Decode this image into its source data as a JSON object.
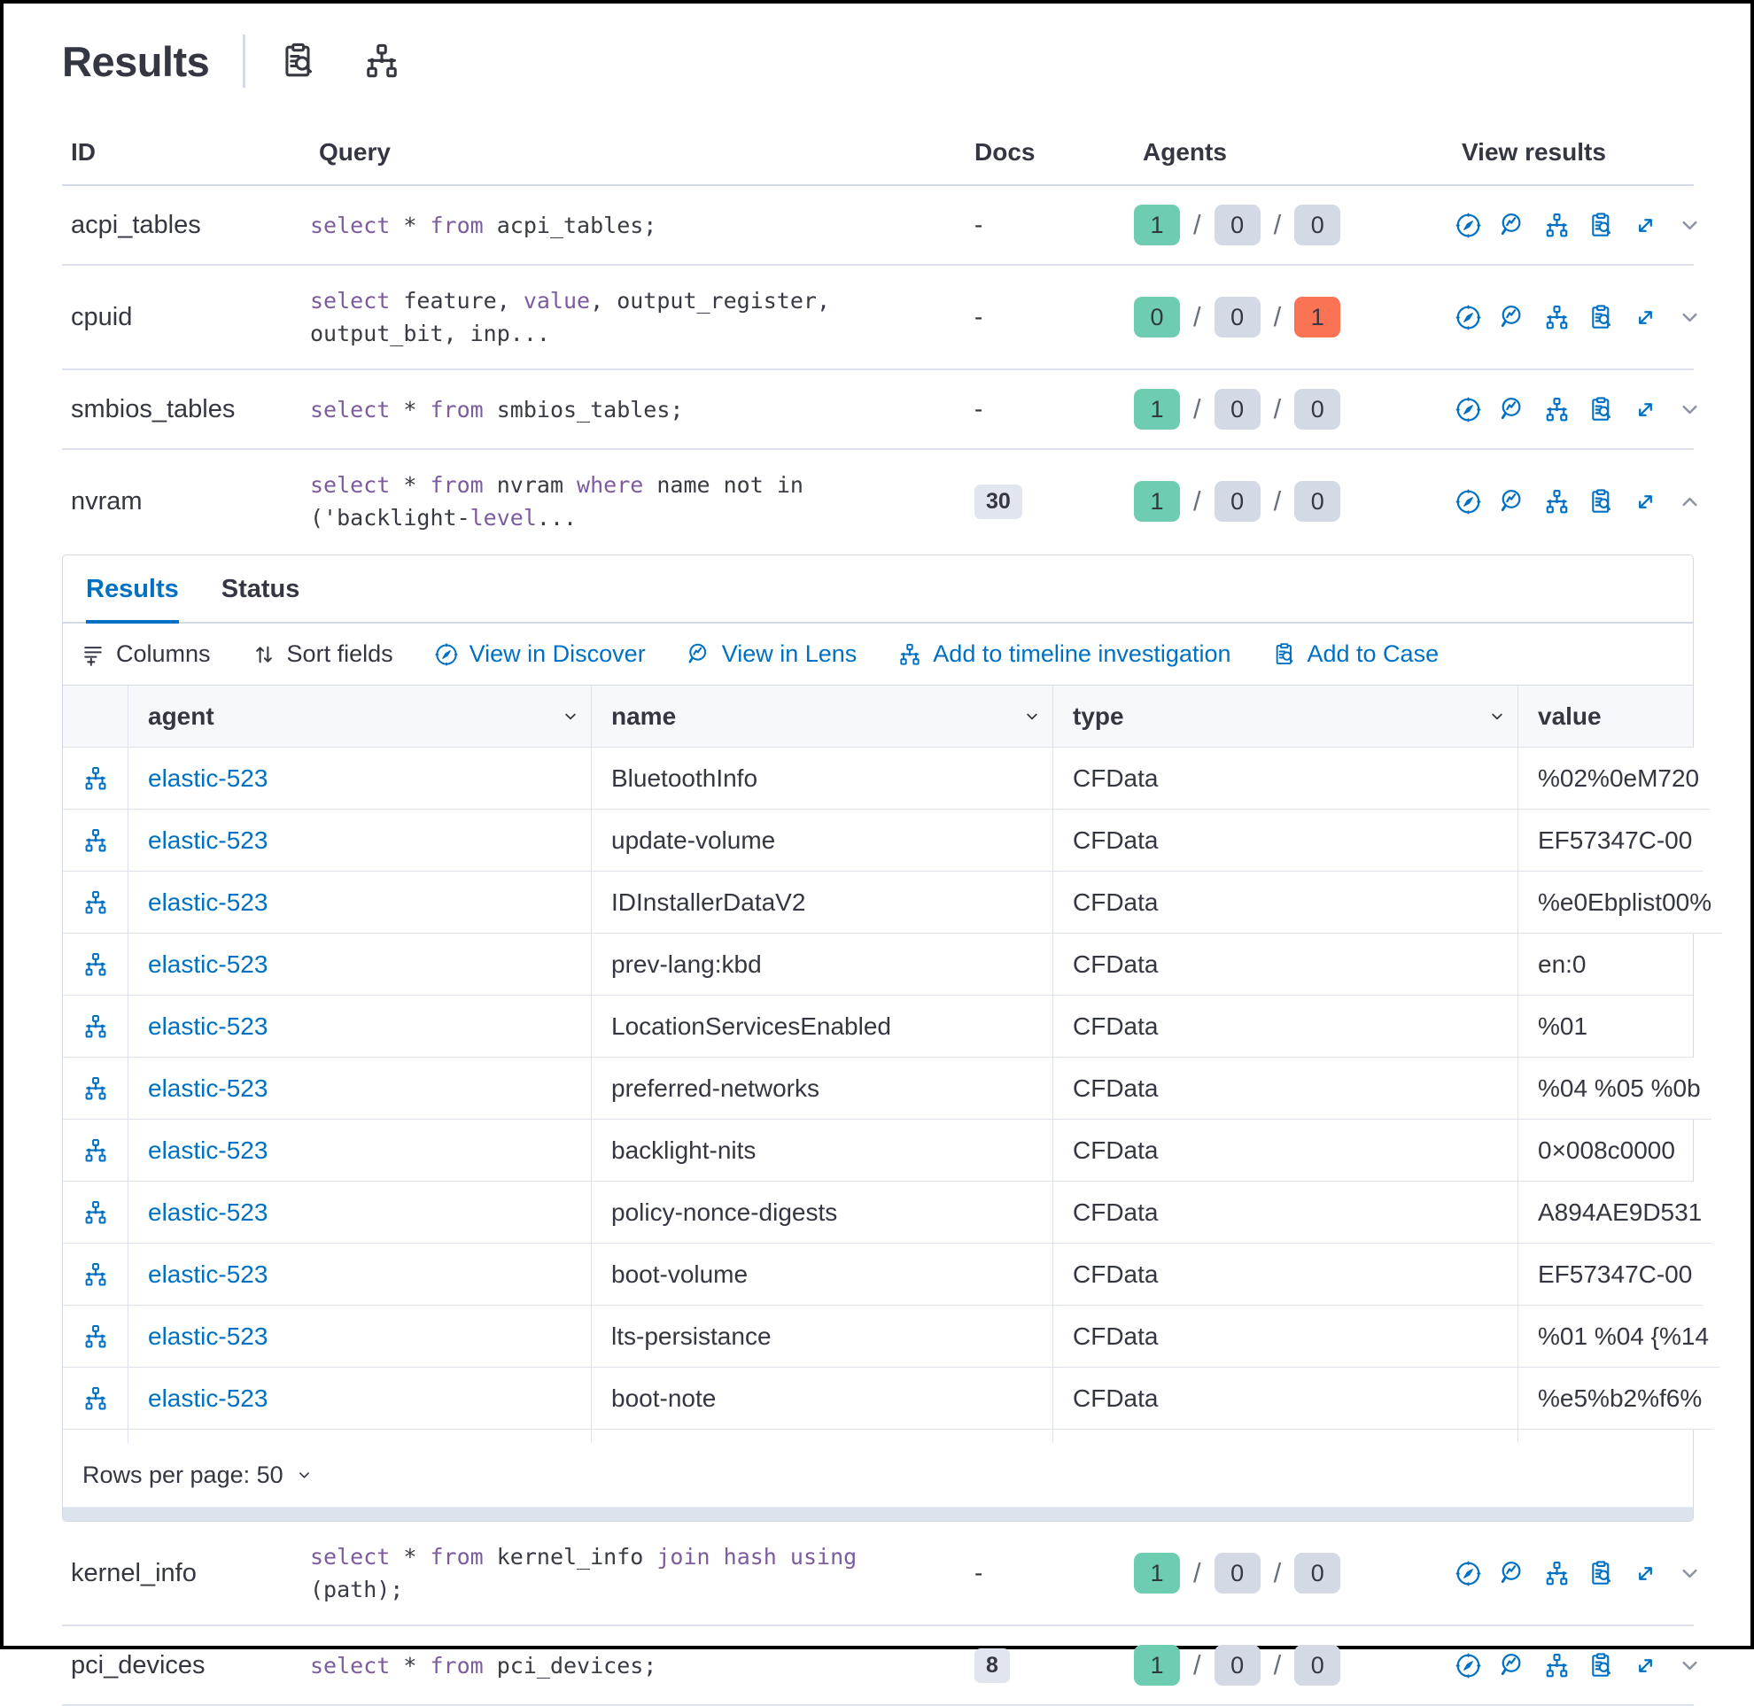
{
  "header": {
    "title": "Results",
    "icons": [
      "inspect-icon",
      "topology-icon"
    ]
  },
  "colors": {
    "accent_blue": "#0071c2",
    "success_green": "#6dccb1",
    "neutral_gray": "#d3dae6",
    "danger_red": "#fb7355",
    "keyword_purple": "#7d5c9e",
    "text": "#343741"
  },
  "table": {
    "columns": {
      "id": "ID",
      "query": "Query",
      "docs": "Docs",
      "agents": "Agents",
      "view_results": "View results"
    },
    "rows": [
      {
        "id": "acpi_tables",
        "query": [
          {
            "k": 1,
            "t": "select"
          },
          {
            "t": " * "
          },
          {
            "k": 1,
            "t": "from"
          },
          {
            "t": " acpi_tables;"
          }
        ],
        "docs": "-",
        "docs_badge": false,
        "agents": [
          {
            "value": "1",
            "color": "green"
          },
          {
            "value": "0",
            "color": "gray"
          },
          {
            "value": "0",
            "color": "gray"
          }
        ],
        "expanded": false
      },
      {
        "id": "cpuid",
        "query": [
          {
            "k": 1,
            "t": "select"
          },
          {
            "t": " feature, "
          },
          {
            "k": 1,
            "t": "value"
          },
          {
            "t": ", output_register,"
          },
          {
            "br": 1
          },
          {
            "t": "output_bit, inp..."
          }
        ],
        "docs": "-",
        "docs_badge": false,
        "agents": [
          {
            "value": "0",
            "color": "green"
          },
          {
            "value": "0",
            "color": "gray"
          },
          {
            "value": "1",
            "color": "red"
          }
        ],
        "expanded": false
      },
      {
        "id": "smbios_tables",
        "query": [
          {
            "k": 1,
            "t": "select"
          },
          {
            "t": " * "
          },
          {
            "k": 1,
            "t": "from"
          },
          {
            "t": " smbios_tables;"
          }
        ],
        "docs": "-",
        "docs_badge": false,
        "agents": [
          {
            "value": "1",
            "color": "green"
          },
          {
            "value": "0",
            "color": "gray"
          },
          {
            "value": "0",
            "color": "gray"
          }
        ],
        "expanded": false
      },
      {
        "id": "nvram",
        "query": [
          {
            "k": 1,
            "t": "select"
          },
          {
            "t": " * "
          },
          {
            "k": 1,
            "t": "from"
          },
          {
            "t": " nvram "
          },
          {
            "k": 1,
            "t": "where"
          },
          {
            "t": " name not in"
          },
          {
            "br": 1
          },
          {
            "t": "('backlight-"
          },
          {
            "k": 1,
            "t": "level"
          },
          {
            "t": "..."
          }
        ],
        "docs": "30",
        "docs_badge": true,
        "agents": [
          {
            "value": "1",
            "color": "green"
          },
          {
            "value": "0",
            "color": "gray"
          },
          {
            "value": "0",
            "color": "gray"
          }
        ],
        "expanded": true
      },
      {
        "id": "kernel_info",
        "query": [
          {
            "k": 1,
            "t": "select"
          },
          {
            "t": " * "
          },
          {
            "k": 1,
            "t": "from"
          },
          {
            "t": " kernel_info "
          },
          {
            "k": 1,
            "t": "join"
          },
          {
            "t": " "
          },
          {
            "k": 1,
            "t": "hash"
          },
          {
            "t": " "
          },
          {
            "k": 1,
            "t": "using"
          },
          {
            "t": " (path);"
          }
        ],
        "docs": "-",
        "docs_badge": false,
        "agents": [
          {
            "value": "1",
            "color": "green"
          },
          {
            "value": "0",
            "color": "gray"
          },
          {
            "value": "0",
            "color": "gray"
          }
        ],
        "expanded": false
      },
      {
        "id": "pci_devices",
        "query": [
          {
            "k": 1,
            "t": "select"
          },
          {
            "t": " * "
          },
          {
            "k": 1,
            "t": "from"
          },
          {
            "t": " pci_devices;"
          }
        ],
        "docs": "8",
        "docs_badge": true,
        "agents": [
          {
            "value": "1",
            "color": "green"
          },
          {
            "value": "0",
            "color": "gray"
          },
          {
            "value": "0",
            "color": "gray"
          }
        ],
        "expanded": false
      }
    ]
  },
  "panel": {
    "tabs": {
      "results": "Results",
      "status": "Status"
    },
    "toolbar": {
      "columns_label": "Columns",
      "sort_label": "Sort fields",
      "discover_label": "View in Discover",
      "lens_label": "View in Lens",
      "timeline_label": "Add to timeline investigation",
      "case_label": "Add to Case"
    },
    "grid": {
      "columns": {
        "agent": "agent",
        "name": "name",
        "type": "type",
        "value": "value"
      },
      "rows": [
        {
          "agent": "elastic-523",
          "name": "BluetoothInfo",
          "type": "CFData",
          "value": "%02%0eM720"
        },
        {
          "agent": "elastic-523",
          "name": "update-volume",
          "type": "CFData",
          "value": "EF57347C-00"
        },
        {
          "agent": "elastic-523",
          "name": "IDInstallerDataV2",
          "type": "CFData",
          "value": "%e0Ebplist00%"
        },
        {
          "agent": "elastic-523",
          "name": "prev-lang:kbd",
          "type": "CFData",
          "value": "en:0"
        },
        {
          "agent": "elastic-523",
          "name": "LocationServicesEnabled",
          "type": "CFData",
          "value": "%01"
        },
        {
          "agent": "elastic-523",
          "name": "preferred-networks",
          "type": "CFData",
          "value": "%04 %05 %0b"
        },
        {
          "agent": "elastic-523",
          "name": "backlight-nits",
          "type": "CFData",
          "value": "0×008c0000"
        },
        {
          "agent": "elastic-523",
          "name": "policy-nonce-digests",
          "type": "CFData",
          "value": "A894AE9D531"
        },
        {
          "agent": "elastic-523",
          "name": "boot-volume",
          "type": "CFData",
          "value": "EF57347C-00"
        },
        {
          "agent": "elastic-523",
          "name": "lts-persistance",
          "type": "CFData",
          "value": "%01 %04 {%14"
        },
        {
          "agent": "elastic-523",
          "name": "boot-note",
          "type": "CFData",
          "value": "%e5%b2%f6%"
        }
      ]
    },
    "footer": {
      "rows_per_page": "Rows per page: 50"
    }
  }
}
